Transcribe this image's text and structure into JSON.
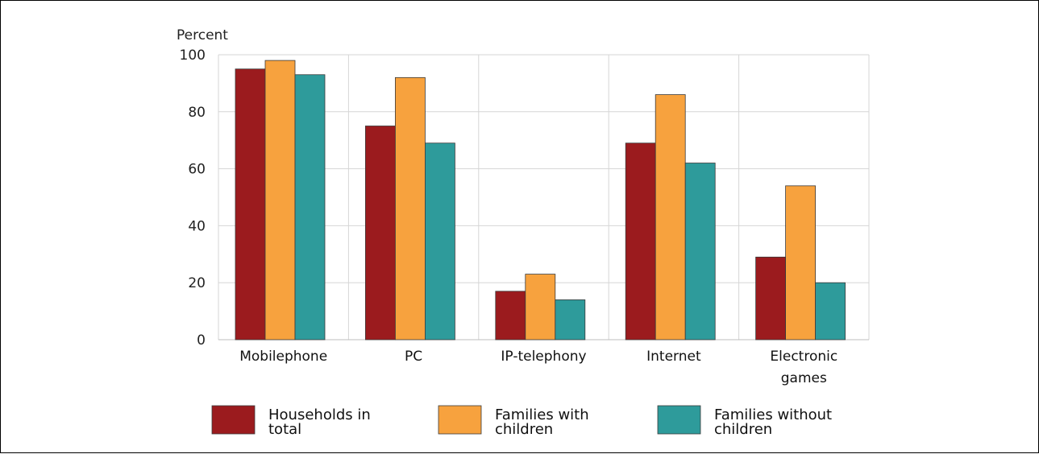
{
  "chart_data": {
    "type": "bar",
    "title": "",
    "ylabel": "Percent",
    "xlabel": "",
    "ylim": [
      0,
      100
    ],
    "yticks": [
      0,
      20,
      40,
      60,
      80,
      100
    ],
    "grid": true,
    "legend_position": "bottom",
    "categories": [
      [
        "Mobilephone"
      ],
      [
        "PC"
      ],
      [
        "IP-telephony"
      ],
      [
        "Internet"
      ],
      [
        "Electronic",
        "games"
      ]
    ],
    "series": [
      {
        "name": [
          "Households in",
          "total"
        ],
        "color": "#9b1b1e",
        "values": [
          95,
          75,
          17,
          69,
          29
        ]
      },
      {
        "name": [
          "Families with",
          "children"
        ],
        "color": "#f7a23e",
        "values": [
          98,
          92,
          23,
          86,
          54
        ]
      },
      {
        "name": [
          "Families without",
          "children"
        ],
        "color": "#2e9b9b",
        "values": [
          93,
          69,
          14,
          62,
          20
        ]
      }
    ]
  }
}
